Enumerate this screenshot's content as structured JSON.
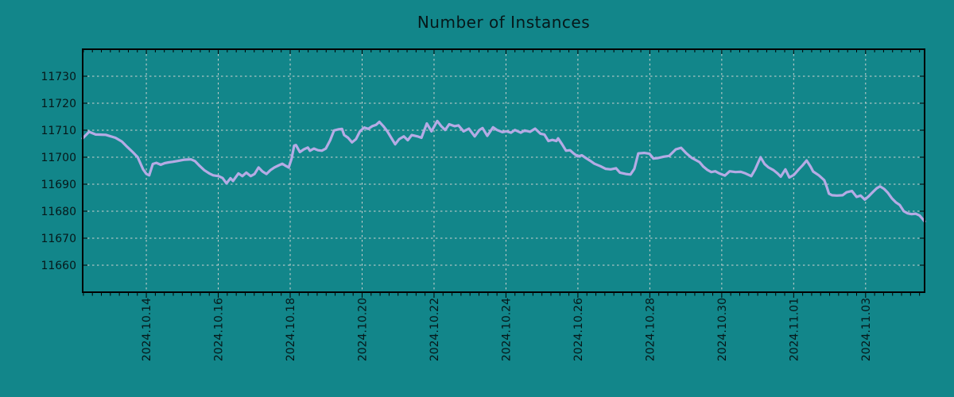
{
  "title": "Number of Instances",
  "colors": {
    "background": "#12868A",
    "line": "#B5ABE5",
    "grid": "#CFD2D0",
    "axis": "#000000",
    "text": "#06181A"
  },
  "chart_data": {
    "type": "line",
    "series_name": "Number of Instances",
    "title": "Number of Instances",
    "xlabel": "",
    "ylabel": "",
    "grid": true,
    "x_unit": "days since 2024-10-12 00:00",
    "x_domain": [
      0.23,
      23.64
    ],
    "y_domain": [
      11650,
      11740
    ],
    "y_ticks": [
      11660,
      11670,
      11680,
      11690,
      11700,
      11710,
      11720,
      11730
    ],
    "x_minor_step_days": 0.25,
    "x_major_ticks": [
      {
        "d": 2,
        "label": "2024.10.14"
      },
      {
        "d": 4,
        "label": "2024.10.16"
      },
      {
        "d": 6,
        "label": "2024.10.18"
      },
      {
        "d": 8,
        "label": "2024.10.20"
      },
      {
        "d": 10,
        "label": "2024.10.22"
      },
      {
        "d": 12,
        "label": "2024.10.24"
      },
      {
        "d": 14,
        "label": "2024.10.26"
      },
      {
        "d": 16,
        "label": "2024.10.28"
      },
      {
        "d": 18,
        "label": "2024.10.30"
      },
      {
        "d": 20,
        "label": "2024.11.01"
      },
      {
        "d": 22,
        "label": "2024.11.03"
      }
    ],
    "points": [
      [
        0.23,
        11707.0
      ],
      [
        0.41,
        11709.4
      ],
      [
        0.59,
        11708.4
      ],
      [
        0.87,
        11708.3
      ],
      [
        1.14,
        11707.2
      ],
      [
        1.32,
        11705.8
      ],
      [
        1.47,
        11703.8
      ],
      [
        1.62,
        11701.9
      ],
      [
        1.76,
        11700.0
      ],
      [
        1.91,
        11695.5
      ],
      [
        2.0,
        11693.8
      ],
      [
        2.08,
        11693.3
      ],
      [
        2.18,
        11697.5
      ],
      [
        2.28,
        11697.9
      ],
      [
        2.4,
        11697.2
      ],
      [
        2.51,
        11697.8
      ],
      [
        2.62,
        11698.1
      ],
      [
        2.73,
        11698.3
      ],
      [
        2.86,
        11698.6
      ],
      [
        3.06,
        11699.1
      ],
      [
        3.24,
        11699.2
      ],
      [
        3.35,
        11698.6
      ],
      [
        3.46,
        11697.1
      ],
      [
        3.61,
        11695.2
      ],
      [
        3.75,
        11694.0
      ],
      [
        3.86,
        11693.3
      ],
      [
        4.01,
        11693.0
      ],
      [
        4.12,
        11692.3
      ],
      [
        4.23,
        11690.3
      ],
      [
        4.34,
        11692.2
      ],
      [
        4.41,
        11691.2
      ],
      [
        4.56,
        11694.0
      ],
      [
        4.67,
        11693.0
      ],
      [
        4.78,
        11694.3
      ],
      [
        4.9,
        11693.0
      ],
      [
        5.01,
        11693.8
      ],
      [
        5.12,
        11696.2
      ],
      [
        5.23,
        11694.7
      ],
      [
        5.34,
        11693.8
      ],
      [
        5.45,
        11695.2
      ],
      [
        5.56,
        11696.2
      ],
      [
        5.67,
        11696.9
      ],
      [
        5.78,
        11697.6
      ],
      [
        5.89,
        11696.7
      ],
      [
        5.96,
        11696.2
      ],
      [
        6.04,
        11699.5
      ],
      [
        6.11,
        11704.3
      ],
      [
        6.16,
        11704.5
      ],
      [
        6.27,
        11701.9
      ],
      [
        6.38,
        11702.9
      ],
      [
        6.49,
        11703.6
      ],
      [
        6.55,
        11702.4
      ],
      [
        6.66,
        11703.2
      ],
      [
        6.77,
        11702.6
      ],
      [
        6.88,
        11702.4
      ],
      [
        6.99,
        11703.2
      ],
      [
        7.11,
        11706.2
      ],
      [
        7.22,
        11709.9
      ],
      [
        7.33,
        11710.3
      ],
      [
        7.44,
        11710.5
      ],
      [
        7.5,
        11708.2
      ],
      [
        7.61,
        11707.2
      ],
      [
        7.72,
        11705.5
      ],
      [
        7.83,
        11706.7
      ],
      [
        7.94,
        11709.6
      ],
      [
        8.06,
        11711.0
      ],
      [
        8.17,
        11710.5
      ],
      [
        8.28,
        11711.5
      ],
      [
        8.39,
        11712.0
      ],
      [
        8.48,
        11713.1
      ],
      [
        8.59,
        11711.5
      ],
      [
        8.7,
        11709.6
      ],
      [
        8.81,
        11707.2
      ],
      [
        8.92,
        11704.8
      ],
      [
        9.03,
        11706.7
      ],
      [
        9.16,
        11707.7
      ],
      [
        9.27,
        11706.3
      ],
      [
        9.38,
        11708.2
      ],
      [
        9.54,
        11707.7
      ],
      [
        9.65,
        11707.2
      ],
      [
        9.8,
        11712.5
      ],
      [
        9.93,
        11709.6
      ],
      [
        10.09,
        11713.4
      ],
      [
        10.2,
        11711.5
      ],
      [
        10.31,
        11710.1
      ],
      [
        10.42,
        11712.2
      ],
      [
        10.57,
        11711.5
      ],
      [
        10.68,
        11711.8
      ],
      [
        10.82,
        11709.6
      ],
      [
        10.97,
        11710.6
      ],
      [
        11.13,
        11707.7
      ],
      [
        11.26,
        11710.1
      ],
      [
        11.35,
        11710.8
      ],
      [
        11.48,
        11707.9
      ],
      [
        11.64,
        11711.1
      ],
      [
        11.75,
        11710.1
      ],
      [
        11.9,
        11709.3
      ],
      [
        12.01,
        11709.6
      ],
      [
        12.14,
        11709.1
      ],
      [
        12.25,
        11710.1
      ],
      [
        12.41,
        11709.1
      ],
      [
        12.52,
        11709.9
      ],
      [
        12.67,
        11709.4
      ],
      [
        12.81,
        11710.6
      ],
      [
        12.96,
        11708.7
      ],
      [
        13.07,
        11708.4
      ],
      [
        13.18,
        11706.0
      ],
      [
        13.29,
        11706.4
      ],
      [
        13.4,
        11706.0
      ],
      [
        13.45,
        11707.0
      ],
      [
        13.56,
        11704.8
      ],
      [
        13.67,
        11702.4
      ],
      [
        13.78,
        11702.6
      ],
      [
        13.89,
        11701.3
      ],
      [
        14.0,
        11700.3
      ],
      [
        14.11,
        11700.7
      ],
      [
        14.22,
        11699.7
      ],
      [
        14.33,
        11698.8
      ],
      [
        14.46,
        11697.6
      ],
      [
        14.62,
        11696.7
      ],
      [
        14.77,
        11695.7
      ],
      [
        14.91,
        11695.5
      ],
      [
        15.06,
        11695.9
      ],
      [
        15.17,
        11694.3
      ],
      [
        15.33,
        11693.8
      ],
      [
        15.46,
        11693.6
      ],
      [
        15.57,
        11695.7
      ],
      [
        15.68,
        11701.4
      ],
      [
        15.84,
        11701.6
      ],
      [
        15.99,
        11701.3
      ],
      [
        16.1,
        11699.5
      ],
      [
        16.23,
        11699.7
      ],
      [
        16.39,
        11700.2
      ],
      [
        16.54,
        11700.5
      ],
      [
        16.72,
        11702.9
      ],
      [
        16.87,
        11703.5
      ],
      [
        17.01,
        11701.5
      ],
      [
        17.16,
        11699.8
      ],
      [
        17.27,
        11699.0
      ],
      [
        17.38,
        11698.2
      ],
      [
        17.49,
        11696.5
      ],
      [
        17.6,
        11695.3
      ],
      [
        17.71,
        11694.5
      ],
      [
        17.82,
        11694.8
      ],
      [
        17.93,
        11694.0
      ],
      [
        18.09,
        11693.2
      ],
      [
        18.22,
        11694.8
      ],
      [
        18.38,
        11694.5
      ],
      [
        18.53,
        11694.6
      ],
      [
        18.66,
        11694.0
      ],
      [
        18.82,
        11693.0
      ],
      [
        18.93,
        11695.5
      ],
      [
        19.08,
        11700.0
      ],
      [
        19.19,
        11697.5
      ],
      [
        19.3,
        11696.2
      ],
      [
        19.44,
        11695.2
      ],
      [
        19.55,
        11694.0
      ],
      [
        19.64,
        11692.8
      ],
      [
        19.77,
        11695.5
      ],
      [
        19.88,
        11692.5
      ],
      [
        20.01,
        11693.5
      ],
      [
        20.14,
        11695.5
      ],
      [
        20.25,
        11697.0
      ],
      [
        20.36,
        11698.8
      ],
      [
        20.47,
        11696.5
      ],
      [
        20.54,
        11694.7
      ],
      [
        20.7,
        11693.3
      ],
      [
        20.85,
        11691.5
      ],
      [
        20.92,
        11689.0
      ],
      [
        20.98,
        11686.5
      ],
      [
        21.07,
        11685.9
      ],
      [
        21.2,
        11685.8
      ],
      [
        21.36,
        11685.9
      ],
      [
        21.47,
        11687.0
      ],
      [
        21.62,
        11687.5
      ],
      [
        21.75,
        11685.3
      ],
      [
        21.86,
        11685.8
      ],
      [
        21.98,
        11684.3
      ],
      [
        22.09,
        11685.6
      ],
      [
        22.2,
        11687.1
      ],
      [
        22.31,
        11688.5
      ],
      [
        22.4,
        11689.2
      ],
      [
        22.51,
        11688.3
      ],
      [
        22.62,
        11686.8
      ],
      [
        22.73,
        11684.8
      ],
      [
        22.84,
        11683.3
      ],
      [
        22.95,
        11682.3
      ],
      [
        23.06,
        11680.0
      ],
      [
        23.17,
        11679.2
      ],
      [
        23.28,
        11678.9
      ],
      [
        23.39,
        11679.1
      ],
      [
        23.5,
        11678.4
      ],
      [
        23.58,
        11677.2
      ],
      [
        23.64,
        11676.2
      ]
    ]
  }
}
